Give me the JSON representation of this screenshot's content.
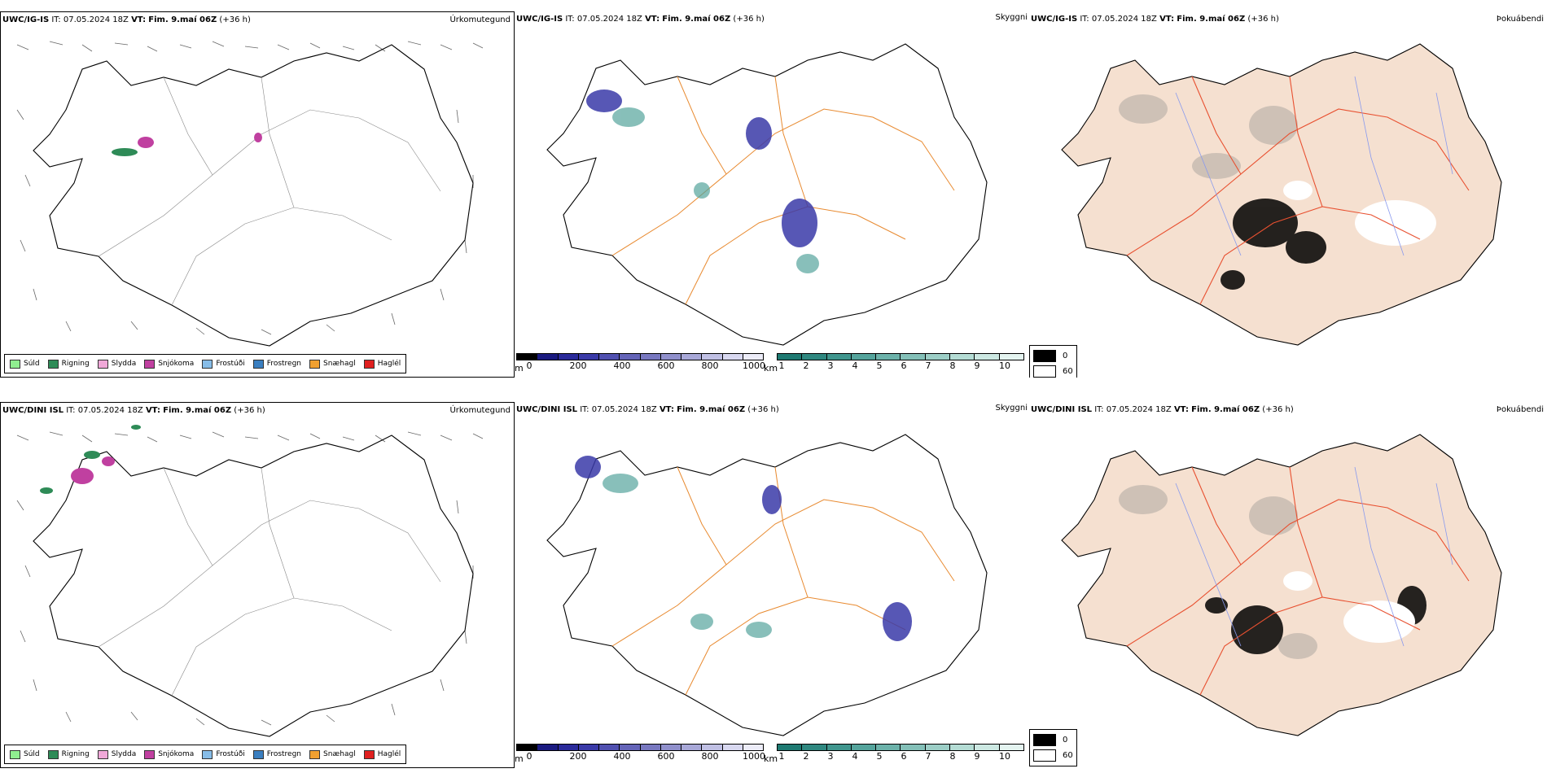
{
  "rows": [
    {
      "precip": {
        "model": "UWC/IG-IS",
        "it_label": "IT:",
        "it": "07.05.2024 18Z",
        "vt_label": "VT:",
        "vt": "Fim. 9.maí 06Z",
        "lead": "(+36 h)",
        "title": "Úrkomutegund"
      },
      "cloud": {
        "model": "UWC/IG-IS",
        "it_label": "IT:",
        "it": "07.05.2024 18Z",
        "vt_label": "VT:",
        "vt": "Fim. 9.maí 06Z",
        "lead": "(+36 h)",
        "title": "Skyggni"
      },
      "fog": {
        "model": "UWC/IG-IS",
        "it_label": "IT:",
        "it": "07.05.2024 18Z",
        "vt_label": "VT:",
        "vt": "Fim. 9.maí 06Z",
        "lead": "(+36 h)",
        "title": "Þokuábendi"
      }
    },
    {
      "precip": {
        "model": "UWC/DINI ISL",
        "it_label": "IT:",
        "it": "07.05.2024 18Z",
        "vt_label": "VT:",
        "vt": "Fim. 9.maí 06Z",
        "lead": "(+36 h)",
        "title": "Úrkomutegund"
      },
      "cloud": {
        "model": "UWC/DINI ISL",
        "it_label": "IT:",
        "it": "07.05.2024 18Z",
        "vt_label": "VT:",
        "vt": "Fim. 9.maí 06Z",
        "lead": "(+36 h)",
        "title": "Skyggni"
      },
      "fog": {
        "model": "UWC/DINI ISL",
        "it_label": "IT:",
        "it": "07.05.2024 18Z",
        "vt_label": "VT:",
        "vt": "Fim. 9.maí 06Z",
        "lead": "(+36 h)",
        "title": "Þokuábendi"
      }
    }
  ],
  "precip_legend": [
    {
      "label": "Súld",
      "color": "#90ee90"
    },
    {
      "label": "Rigning",
      "color": "#2e8b57"
    },
    {
      "label": "Slydda",
      "color": "#f0a8d8"
    },
    {
      "label": "Snjókoma",
      "color": "#c040a0"
    },
    {
      "label": "Frostúði",
      "color": "#87bde8"
    },
    {
      "label": "Frostregn",
      "color": "#3a7fc0"
    },
    {
      "label": "Snæhagl",
      "color": "#f0a030"
    },
    {
      "label": "Haglél",
      "color": "#e02020"
    }
  ],
  "cloud_base_scale": {
    "unit": "m",
    "ticks": [
      "0",
      "200",
      "400",
      "600",
      "800",
      "1000"
    ],
    "colors": [
      "#000000",
      "#1a1a80",
      "#2a2a9a",
      "#3a3aa8",
      "#5050b0",
      "#6464b8",
      "#7878c0",
      "#9090cc",
      "#a8a8d8",
      "#c0c0e4",
      "#d8d8f0",
      "#ececf8"
    ]
  },
  "visibility_scale": {
    "unit": "km",
    "ticks": [
      "1",
      "2",
      "3",
      "4",
      "5",
      "6",
      "7",
      "8",
      "9",
      "10"
    ],
    "colors": [
      "#1e7a72",
      "#2f8880",
      "#40968e",
      "#55a49c",
      "#6cb2aa",
      "#84c0b8",
      "#9ccec6",
      "#b4dcd4",
      "#cce8e2",
      "#e4f4f0"
    ]
  },
  "fog_legend": [
    {
      "value": "0",
      "color": "#000000"
    },
    {
      "value": "60",
      "color": "#ffffff"
    }
  ],
  "colors": {
    "land_fog": "#f5e0d0",
    "roads_fog": "#e85030",
    "rivers": "#8899ee",
    "roads_cloud": "#e88a30",
    "coast": "#000000"
  }
}
